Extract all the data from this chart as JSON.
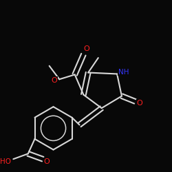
{
  "background": "#080808",
  "bond_color": "#d8d8d8",
  "atom_colors": {
    "O": "#ff2020",
    "N": "#3535ff",
    "C": "#d8d8d8",
    "H": "#d8d8d8"
  },
  "bond_width": 1.5,
  "font_size_atom": 7.5
}
